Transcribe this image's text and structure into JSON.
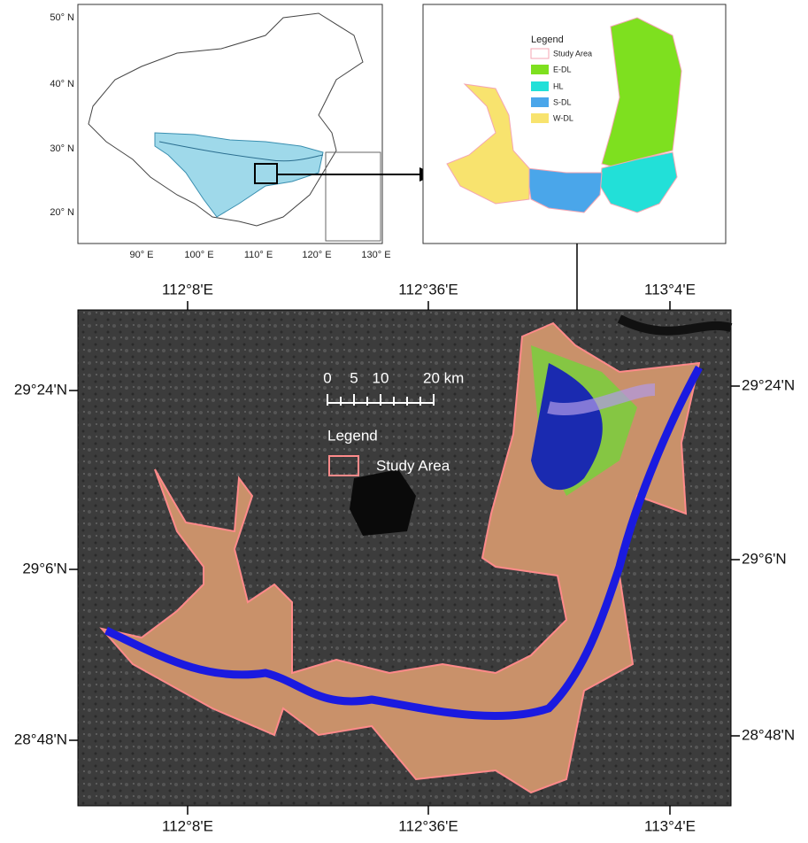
{
  "inset_map": {
    "lat_labels": [
      "50° N",
      "40° N",
      "30° N",
      "20° N"
    ],
    "lon_labels": [
      "90° E",
      "100° E",
      "110° E",
      "120° E",
      "130° E"
    ]
  },
  "zone_map": {
    "legend_title": "Legend",
    "legend_items": [
      "Study Area",
      "E-DL",
      "HL",
      "S-DL",
      "W-DL"
    ]
  },
  "main_map": {
    "top_lon_labels": [
      "112°8'E",
      "112°36'E",
      "113°4'E"
    ],
    "bottom_lon_labels": [
      "112°8'E",
      "112°36'E",
      "113°4'E"
    ],
    "left_lat_labels": [
      "29°24'N",
      "29°6'N",
      "28°48'N"
    ],
    "right_lat_labels": [
      "29°24'N",
      "29°6'N",
      "28°48'N"
    ],
    "scale_labels": [
      "0",
      "5",
      "10",
      "20 km"
    ],
    "legend_title": "Legend",
    "legend_item": "Study Area"
  }
}
